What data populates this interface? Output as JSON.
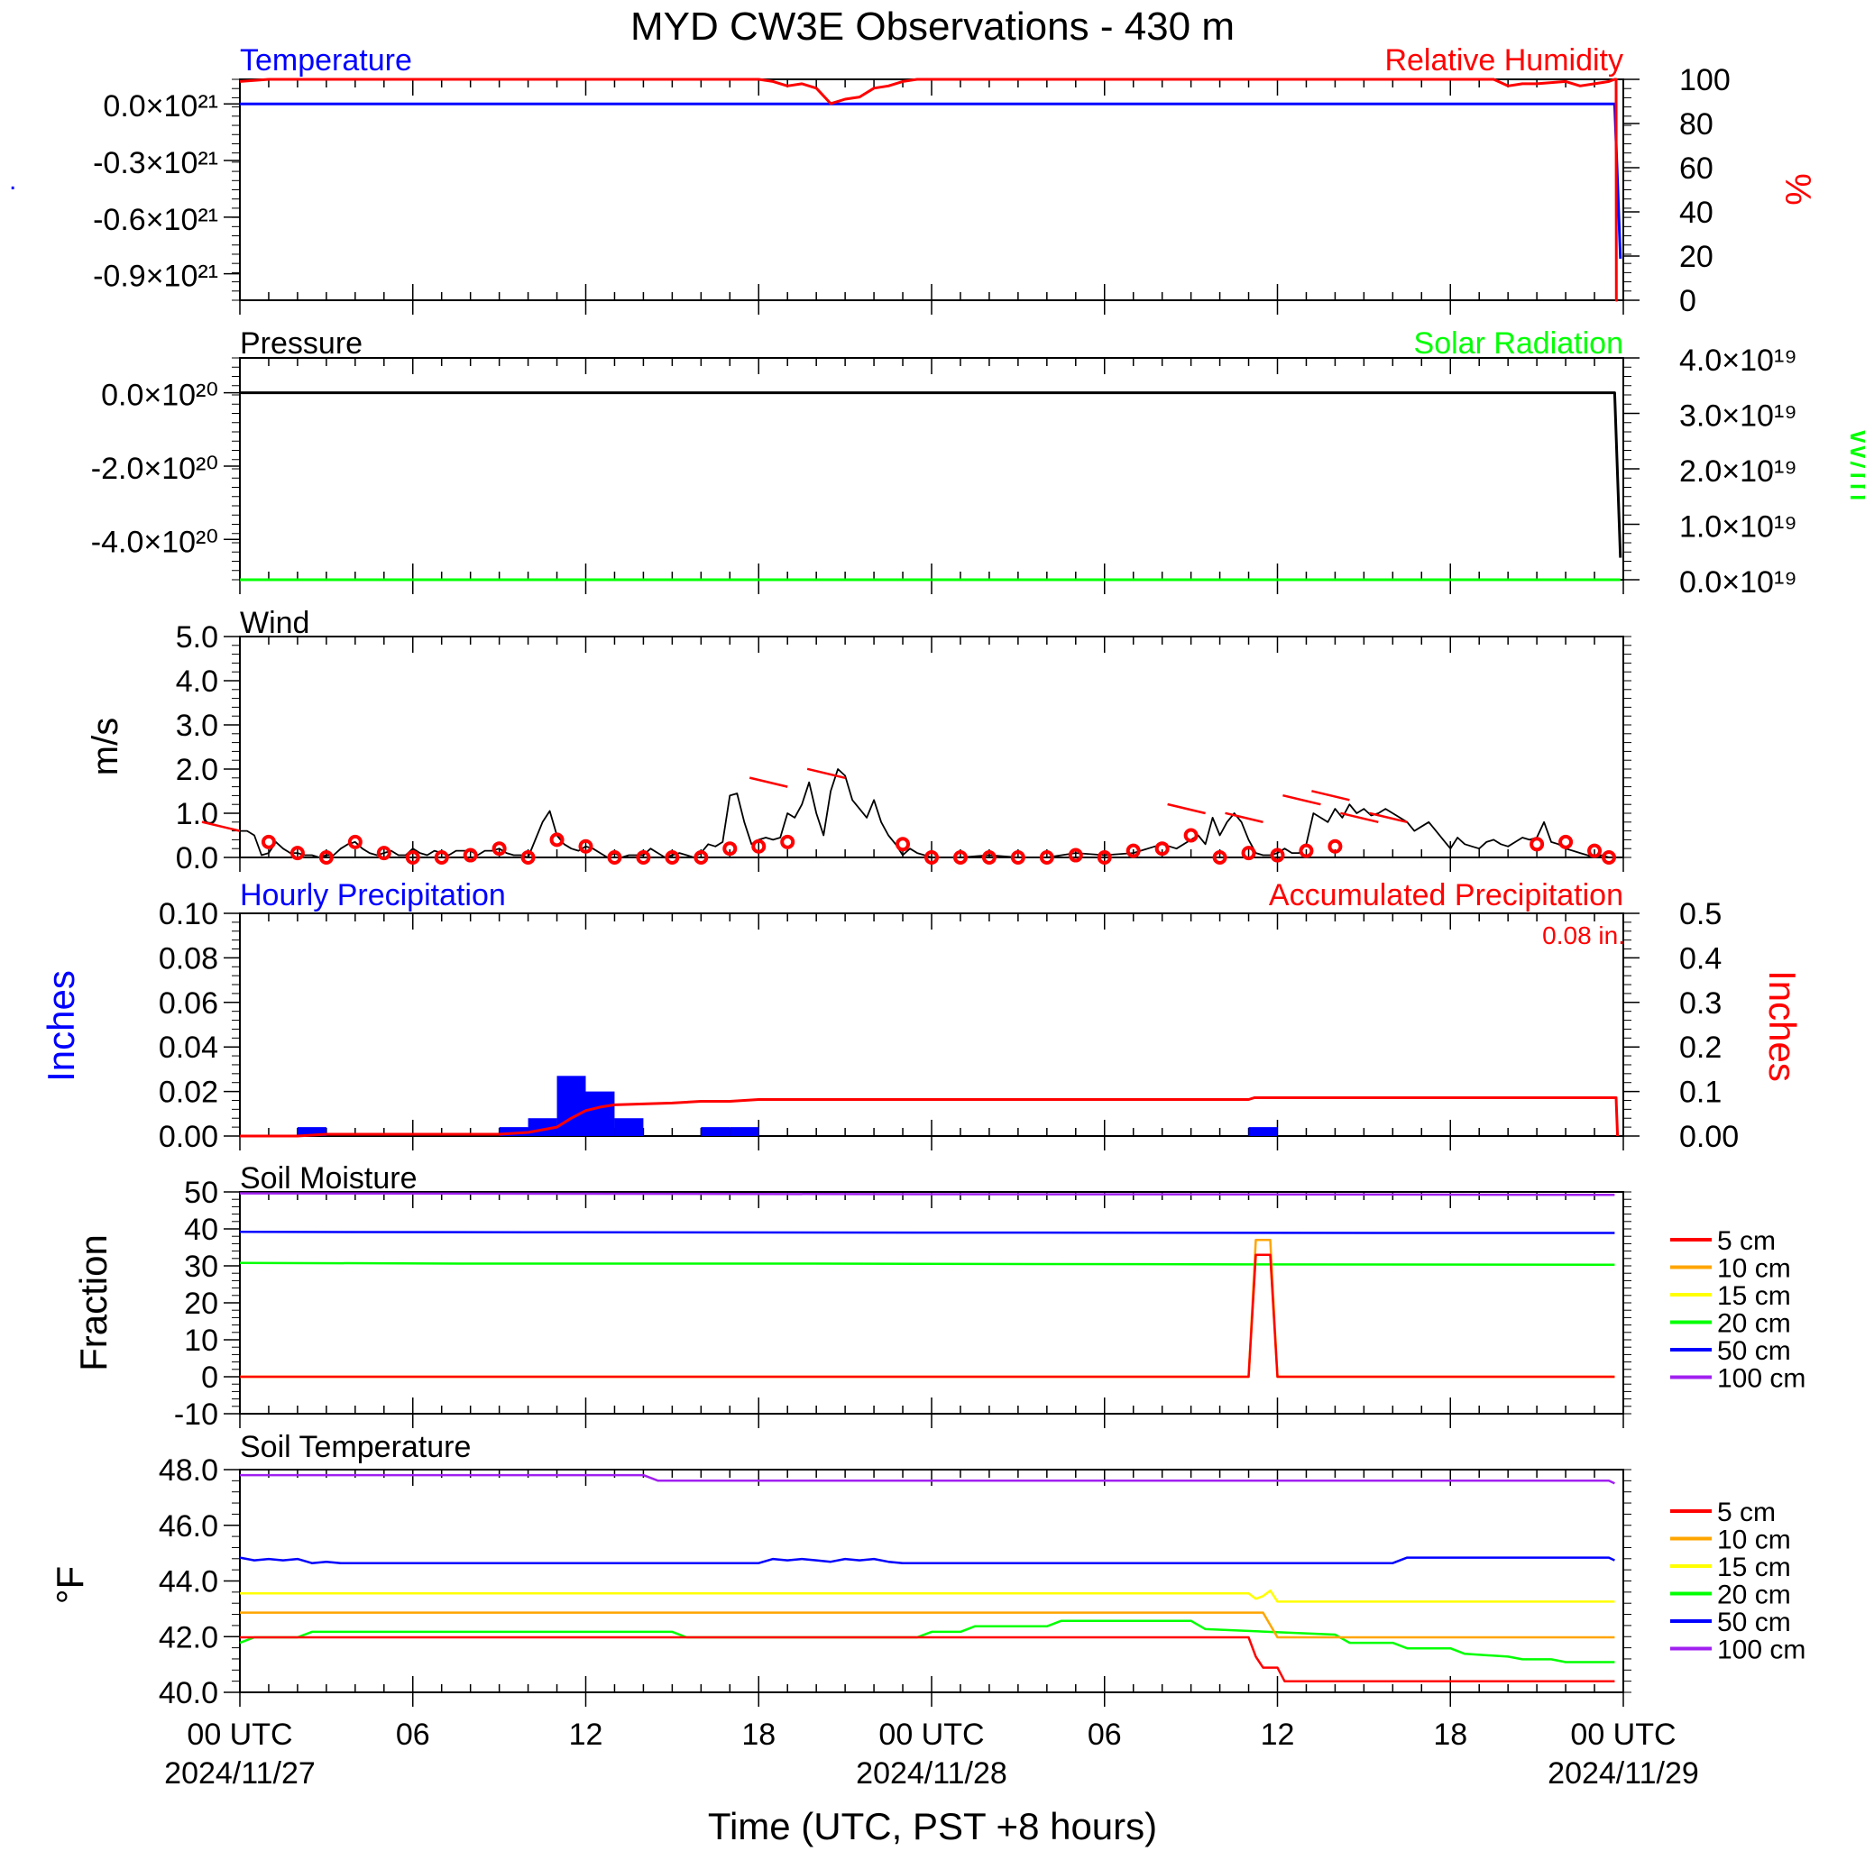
{
  "title": "MYD CW3E Observations - 430 m",
  "xlabel": "Time (UTC, PST +8 hours)",
  "x_ticks": [
    "00 UTC",
    "06",
    "12",
    "18",
    "00 UTC",
    "06",
    "12",
    "18",
    "00 UTC"
  ],
  "x_dates": [
    "2024/11/27",
    "2024/11/28",
    "2024/11/29"
  ],
  "colors": {
    "blue": "#0000ff",
    "red": "#ff0000",
    "green": "#00ff00",
    "black": "#000000",
    "orange": "#ffa500",
    "yellow": "#ffff00",
    "purple": "#a020f0"
  },
  "chart_data": [
    {
      "type": "line",
      "panel": "temperature-rh",
      "title_left": "Temperature",
      "title_right": "Relative Humidity",
      "y_left_ticks": [
        "0.0×10²¹",
        "-0.3×10²¹",
        "-0.6×10²¹",
        "-0.9×10²¹"
      ],
      "y_left_label": ".",
      "ylim_left": [
        -1.04e+21,
        1.3e+20
      ],
      "y_right_ticks": [
        "100",
        "80",
        "60",
        "40",
        "20",
        "0"
      ],
      "y_right_label": "%",
      "ylim_right": [
        0,
        100
      ],
      "x_hours": [
        0,
        47.7,
        47.9
      ],
      "temperature": [
        0,
        0,
        -8.2e+20
      ],
      "rh_x": [
        0,
        1,
        2,
        18,
        18.5,
        19,
        19.5,
        20,
        20.5,
        21,
        21.5,
        22,
        22.5,
        23,
        23.5,
        24,
        43.5,
        44,
        44.5,
        45,
        46,
        46.5,
        47,
        47.5,
        47.7,
        47.75,
        47.76,
        47.8
      ],
      "rh": [
        99,
        100,
        100,
        100,
        99,
        97,
        98,
        96,
        89,
        91,
        92,
        96,
        97,
        99,
        100,
        100,
        100,
        97,
        98,
        98,
        99,
        97,
        98,
        99,
        100,
        100,
        0,
        0
      ]
    },
    {
      "type": "line",
      "panel": "pressure-solar",
      "title_left": "Pressure",
      "title_right": "Solar Radiation",
      "y_left_ticks": [
        "0.0×10²⁰",
        "-2.0×10²⁰",
        "-4.0×10²⁰"
      ],
      "ylim_left": [
        -5.1e+20,
        9.5e+19
      ],
      "y_right_ticks": [
        "4.0×10¹⁹",
        "3.0×10¹⁹",
        "2.0×10¹⁹",
        "1.0×10¹⁹",
        "0.0×10¹⁹"
      ],
      "y_right_label": "W/m",
      "ylim_right": [
        0,
        4e+19
      ],
      "x_hours": [
        0,
        47.7,
        47.9
      ],
      "pressure": [
        0,
        0,
        -4.5e+20
      ],
      "solar": [
        0,
        0,
        0
      ]
    },
    {
      "type": "line",
      "panel": "wind",
      "title_left": "Wind",
      "ylabel": "m/s",
      "y_ticks": [
        "5.0",
        "4.0",
        "3.0",
        "2.0",
        "1.0",
        "0.0"
      ],
      "ylim": [
        0,
        5
      ],
      "x_hours": [
        0,
        0.25,
        0.5,
        0.75,
        1,
        1.25,
        1.5,
        1.75,
        2,
        2.25,
        2.5,
        2.75,
        3,
        3.25,
        3.5,
        3.75,
        4,
        4.25,
        4.5,
        4.75,
        5,
        5.25,
        5.5,
        5.75,
        6,
        6.25,
        6.5,
        6.75,
        7,
        7.25,
        7.5,
        7.75,
        8,
        8.25,
        8.5,
        8.75,
        9,
        9.25,
        9.5,
        9.75,
        10,
        10.25,
        10.5,
        10.75,
        11,
        11.25,
        11.5,
        11.75,
        12,
        12.25,
        12.5,
        12.75,
        13,
        13.25,
        13.5,
        13.75,
        14,
        14.25,
        14.5,
        14.75,
        15,
        15.25,
        15.5,
        15.75,
        16,
        16.25,
        16.5,
        16.75,
        17,
        17.25,
        17.5,
        17.75,
        18,
        18.25,
        18.5,
        18.75,
        19,
        19.25,
        19.5,
        19.75,
        20,
        20.25,
        20.5,
        20.75,
        21,
        21.25,
        21.5,
        21.75,
        22,
        22.25,
        22.5,
        22.75,
        23,
        23.25,
        23.5,
        23.75,
        24,
        25,
        26,
        27,
        28,
        29,
        30,
        31,
        31.5,
        32,
        32.5,
        33,
        33.25,
        33.5,
        33.75,
        34,
        34.25,
        34.5,
        34.75,
        35,
        35.25,
        35.5,
        35.75,
        36,
        36.25,
        36.5,
        36.75,
        37,
        37.25,
        37.5,
        37.75,
        38,
        38.25,
        38.5,
        38.75,
        39,
        39.25,
        39.5,
        39.75,
        40,
        40.25,
        40.5,
        40.75,
        41,
        41.25,
        41.5,
        41.75,
        42,
        42.25,
        42.5,
        42.75,
        43,
        43.25,
        43.5,
        43.75,
        44,
        44.25,
        44.5,
        44.75,
        45,
        45.25,
        45.5,
        45.75,
        46,
        46.25,
        46.5,
        46.75,
        47,
        47.25,
        47.5
      ],
      "speed": [
        0.6,
        0.6,
        0.5,
        0.05,
        0.1,
        0.35,
        0.2,
        0.1,
        0.1,
        0.05,
        0.05,
        0.0,
        0.05,
        0.05,
        0.2,
        0.3,
        0.35,
        0.2,
        0.1,
        0.05,
        0.1,
        0.15,
        0.05,
        0.05,
        0.2,
        0.1,
        0.05,
        0.15,
        0.1,
        0.05,
        0.15,
        0.15,
        0.15,
        0.05,
        0.15,
        0.15,
        0.2,
        0.1,
        0.05,
        0.05,
        0.0,
        0.4,
        0.8,
        1.05,
        0.5,
        0.3,
        0.2,
        0.15,
        0.25,
        0.2,
        0.1,
        0.0,
        0.1,
        0.0,
        0.05,
        0.05,
        0.05,
        0.2,
        0.1,
        0.0,
        0.05,
        0.1,
        0.05,
        0.0,
        0.1,
        0.3,
        0.25,
        0.35,
        1.4,
        1.45,
        0.8,
        0.3,
        0.4,
        0.45,
        0.4,
        0.45,
        1.0,
        0.9,
        1.2,
        1.7,
        1.0,
        0.5,
        1.5,
        2.0,
        1.85,
        1.3,
        1.1,
        0.9,
        1.3,
        0.8,
        0.5,
        0.3,
        0.05,
        0.2,
        0.1,
        0.05,
        0.0,
        0.0,
        0.05,
        0.0,
        0.0,
        0.1,
        0.05,
        0.1,
        0.2,
        0.3,
        0.2,
        0.4,
        0.5,
        0.3,
        0.9,
        0.5,
        0.8,
        1.0,
        0.8,
        0.4,
        0.1,
        0.05,
        0.05,
        0.1,
        0.2,
        0.1,
        0.1,
        0.3,
        1.0,
        0.9,
        0.8,
        1.1,
        0.9,
        1.2,
        1.0,
        1.1,
        0.95,
        1.0,
        1.1,
        1.0,
        0.9,
        0.8,
        0.6,
        0.7,
        0.8,
        0.6,
        0.4,
        0.2,
        0.45,
        0.3,
        0.25,
        0.2,
        0.35,
        0.4,
        0.3,
        0.25,
        0.35,
        0.45,
        0.4,
        0.45,
        0.8,
        0.35,
        0.3,
        0.2,
        0.15,
        0.1,
        0.05,
        0.0,
        0.05,
        0.0,
        0.0,
        0.0,
        0.0,
        0.0,
        0.0
      ],
      "gust_x": [
        1,
        2,
        3,
        4,
        5,
        6,
        7,
        8,
        9,
        10,
        11,
        12,
        13,
        14,
        15,
        16,
        17,
        18,
        19,
        23,
        24,
        25,
        26,
        27,
        28,
        29,
        30,
        31,
        32,
        33,
        34,
        35,
        36,
        37,
        38,
        45,
        46,
        47,
        47.5
      ],
      "gust": [
        0.35,
        0.1,
        0.0,
        0.35,
        0.1,
        0.0,
        0.0,
        0.05,
        0.2,
        0.0,
        0.4,
        0.25,
        0.0,
        0.0,
        0.0,
        0.0,
        0.2,
        0.25,
        0.35,
        0.3,
        0.0,
        0.0,
        0.0,
        0.0,
        0.0,
        0.05,
        0.0,
        0.15,
        0.2,
        0.5,
        0.0,
        0.1,
        0.05,
        0.15,
        0.25,
        0.3,
        0.35,
        0.15,
        0.0
      ],
      "barb_x": [
        0,
        19,
        21,
        33.5,
        35.5,
        37.5,
        38.5,
        39.5,
        40.5
      ],
      "barb_y": [
        0.6,
        1.6,
        1.8,
        1.0,
        0.8,
        1.2,
        1.3,
        0.8,
        0.8
      ]
    },
    {
      "type": "bar",
      "panel": "precipitation",
      "title_left": "Hourly Precipitation",
      "title_right": "Accumulated Precipitation",
      "annotation": "0.08 in.",
      "y_left_label": "Inches",
      "y_right_label": "Inches",
      "y_left_ticks": [
        "0.10",
        "0.08",
        "0.06",
        "0.04",
        "0.02",
        "0.00"
      ],
      "ylim_left": [
        0,
        0.1
      ],
      "y_right_ticks": [
        "0.5",
        "0.4",
        "0.3",
        "0.2",
        "0.1",
        "0.00"
      ],
      "ylim_right": [
        0,
        0.5
      ],
      "bar_hours": [
        2,
        9,
        10,
        11,
        12,
        13,
        16,
        17,
        35
      ],
      "bar_values": [
        0.004,
        0.004,
        0.008,
        0.027,
        0.02,
        0.008,
        0.004,
        0.004,
        0.004
      ],
      "accum_x": [
        0,
        2,
        3,
        9,
        10,
        11,
        11.5,
        12,
        12.5,
        13,
        14,
        15,
        16,
        17,
        18,
        19,
        35,
        35.2,
        47.7,
        47.75,
        47.8
      ],
      "accum": [
        0.0,
        0.0,
        0.004,
        0.004,
        0.008,
        0.02,
        0.04,
        0.057,
        0.065,
        0.07,
        0.072,
        0.074,
        0.078,
        0.078,
        0.082,
        0.082,
        0.082,
        0.086,
        0.086,
        0.086,
        0.0
      ]
    },
    {
      "type": "line",
      "panel": "soil-moisture",
      "title_left": "Soil Moisture",
      "ylabel": "Fraction",
      "y_ticks": [
        "50",
        "40",
        "30",
        "20",
        "10",
        "0",
        "-10"
      ],
      "ylim": [
        -10,
        50
      ],
      "legend": [
        "5 cm",
        "10 cm",
        "15 cm",
        "20 cm",
        "50 cm",
        "100 cm"
      ],
      "series": [
        {
          "name": "5 cm",
          "color": "#ff0000",
          "x": [
            0,
            35,
            35.25,
            35.75,
            36,
            47.7
          ],
          "values": [
            0,
            0,
            33,
            33,
            0,
            0
          ]
        },
        {
          "name": "10 cm",
          "color": "#ffa500",
          "x": [
            0,
            35,
            35.25,
            35.75,
            36,
            47.7
          ],
          "values": [
            0,
            0,
            37,
            37,
            0,
            0
          ]
        },
        {
          "name": "15 cm",
          "color": "#ffff00",
          "x": [
            0,
            35,
            35.25,
            35.75,
            36,
            47.7
          ],
          "values": [
            0,
            0,
            33,
            33,
            0,
            0
          ]
        },
        {
          "name": "20 cm",
          "color": "#00ff00",
          "x": [
            0,
            8,
            20,
            35,
            47.7
          ],
          "values": [
            30.8,
            30.6,
            30.6,
            30.4,
            30.3
          ]
        },
        {
          "name": "50 cm",
          "color": "#0000ff",
          "x": [
            0,
            10,
            24,
            40,
            47.7
          ],
          "values": [
            39.2,
            39.1,
            39.0,
            38.9,
            38.9
          ]
        },
        {
          "name": "100 cm",
          "color": "#a020f0",
          "x": [
            0,
            12,
            24,
            40,
            47.7
          ],
          "values": [
            49.6,
            49.5,
            49.4,
            49.3,
            49.2
          ]
        }
      ]
    },
    {
      "type": "line",
      "panel": "soil-temperature",
      "title_left": "Soil Temperature",
      "ylabel": "°F",
      "y_ticks": [
        "48.0",
        "46.0",
        "44.0",
        "42.0",
        "40.0"
      ],
      "ylim": [
        39.9,
        48.0
      ],
      "legend": [
        "5 cm",
        "10 cm",
        "15 cm",
        "20 cm",
        "50 cm",
        "100 cm"
      ],
      "series": [
        {
          "name": "5 cm",
          "color": "#ff0000",
          "x": [
            0,
            35,
            35.25,
            35.5,
            36,
            36.25,
            47.7
          ],
          "values": [
            41.9,
            41.9,
            41.2,
            40.8,
            40.8,
            40.3,
            40.3
          ]
        },
        {
          "name": "10 cm",
          "color": "#ffa500",
          "x": [
            0,
            35.5,
            36,
            47.7
          ],
          "values": [
            42.8,
            42.8,
            41.9,
            41.9
          ]
        },
        {
          "name": "15 cm",
          "color": "#ffff00",
          "x": [
            0,
            35,
            35.25,
            35.5,
            35.75,
            36,
            36.25,
            47.7
          ],
          "values": [
            43.5,
            43.5,
            43.3,
            43.4,
            43.6,
            43.2,
            43.2,
            43.2
          ]
        },
        {
          "name": "20 cm",
          "color": "#00ff00",
          "x": [
            0,
            0.5,
            2,
            2.5,
            15,
            15.5,
            23.5,
            24,
            25,
            25.5,
            28,
            28.5,
            33,
            33.5,
            38,
            38.5,
            40,
            40.5,
            42,
            42.5,
            44,
            44.5,
            45.5,
            46,
            47.7
          ],
          "values": [
            41.7,
            41.9,
            41.9,
            42.1,
            42.1,
            41.9,
            41.9,
            42.1,
            42.1,
            42.3,
            42.3,
            42.5,
            42.5,
            42.2,
            42.0,
            41.7,
            41.7,
            41.5,
            41.5,
            41.3,
            41.2,
            41.1,
            41.1,
            41.0,
            41.0
          ]
        },
        {
          "name": "50 cm",
          "color": "#0000ff",
          "x": [
            0,
            0.5,
            1,
            1.5,
            2,
            2.5,
            3,
            3.5,
            4,
            4.5,
            18,
            18.5,
            19,
            19.5,
            20,
            20.5,
            21,
            21.5,
            22,
            22.5,
            23,
            23.5,
            24,
            40,
            40.5,
            47.5,
            47.7
          ],
          "values": [
            44.8,
            44.7,
            44.75,
            44.7,
            44.75,
            44.6,
            44.65,
            44.6,
            44.6,
            44.6,
            44.6,
            44.75,
            44.7,
            44.75,
            44.7,
            44.65,
            44.75,
            44.7,
            44.75,
            44.65,
            44.6,
            44.6,
            44.6,
            44.6,
            44.8,
            44.8,
            44.7
          ]
        },
        {
          "name": "100 cm",
          "color": "#a020f0",
          "x": [
            0,
            14,
            14.5,
            47.5,
            47.7
          ],
          "values": [
            47.8,
            47.8,
            47.6,
            47.6,
            47.5
          ]
        }
      ]
    }
  ]
}
